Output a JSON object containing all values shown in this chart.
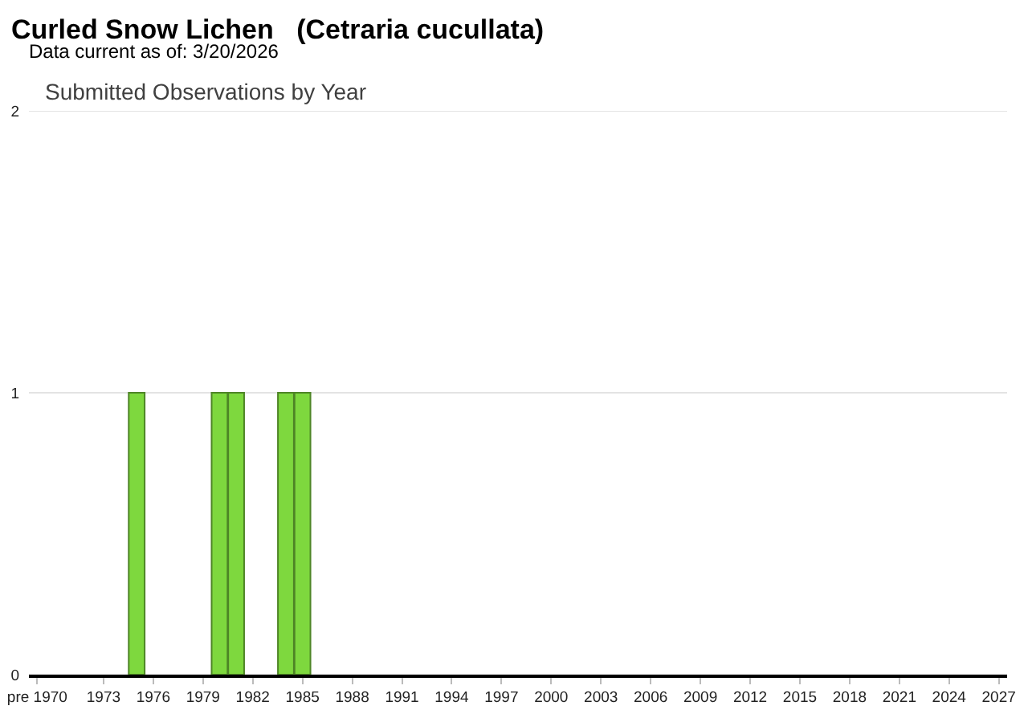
{
  "chart_data": {
    "type": "bar",
    "title": "Curled Snow Lichen   (Cetraria cucullata)",
    "subtitle": "Data current as of: 3/20/2026",
    "annotations": [
      "Submitted Observations by Year"
    ],
    "categories": [
      "pre 1970",
      null,
      null,
      null,
      "1973",
      null,
      null,
      "1976",
      null,
      null,
      "1979",
      null,
      null,
      "1982",
      null,
      null,
      "1985",
      null,
      null,
      "1988",
      null,
      null,
      "1991",
      null,
      null,
      "1994",
      null,
      null,
      "1997",
      null,
      null,
      "2000",
      null,
      null,
      "2003",
      null,
      null,
      "2006",
      null,
      null,
      "2009",
      null,
      null,
      "2012",
      null,
      null,
      "2015",
      null,
      null,
      "2018",
      null,
      null,
      "2021",
      null,
      null,
      "2024",
      null,
      null,
      "2027"
    ],
    "values": [
      0,
      0,
      0,
      0,
      0,
      0,
      1,
      0,
      0,
      0,
      0,
      1,
      1,
      0,
      0,
      1,
      1,
      0,
      0,
      0,
      0,
      0,
      0,
      0,
      0,
      0,
      0,
      0,
      0,
      0,
      0,
      0,
      0,
      0,
      0,
      0,
      0,
      0,
      0,
      0,
      0,
      0,
      0,
      0,
      0,
      0,
      0,
      0,
      0,
      0,
      0,
      0,
      0,
      0,
      0,
      0,
      0,
      0,
      0
    ],
    "color": "#7ed83e",
    "ylim": [
      0,
      2
    ],
    "yticks": [
      0,
      1,
      2
    ],
    "grid": "y"
  }
}
